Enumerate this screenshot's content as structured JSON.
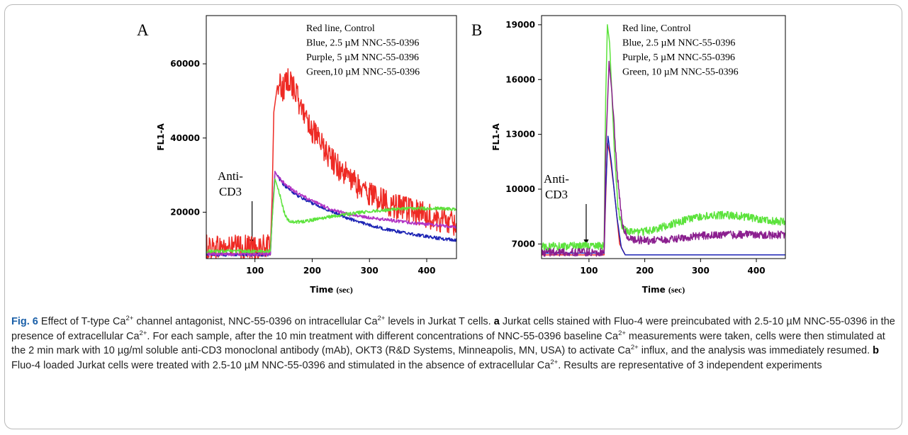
{
  "chart_data": [
    {
      "panel": "A",
      "type": "line",
      "xlabel": "Time",
      "xunit": "(sec)",
      "ylabel": "FL1-A",
      "xlim": [
        15,
        452
      ],
      "ylim": [
        7500,
        73000
      ],
      "xticks": [
        100,
        200,
        300,
        400
      ],
      "yticks": [
        20000,
        40000,
        60000
      ],
      "legend_lines": [
        "Red line, Control",
        "Blue, 2.5 µM NNC-55-0396",
        "Purple, 5 µM NNC-55-0396",
        "Green,10 µM NNC-55-0396"
      ],
      "annotation": {
        "lines": [
          "Anti-",
          "CD3"
        ],
        "arrow_x": 95
      },
      "series": [
        {
          "color": "#ee2a24",
          "points": [
            [
              15,
              10500
            ],
            [
              95,
              10500
            ],
            [
              127,
              10500
            ],
            [
              130,
              24000
            ],
            [
              133,
              47000
            ],
            [
              140,
              55000
            ],
            [
              150,
              53000
            ],
            [
              160,
              56000
            ],
            [
              170,
              53000
            ],
            [
              180,
              48000
            ],
            [
              190,
              46000
            ],
            [
              200,
              42000
            ],
            [
              220,
              37000
            ],
            [
              240,
              33000
            ],
            [
              260,
              30000
            ],
            [
              280,
              27000
            ],
            [
              300,
              25000
            ],
            [
              320,
              23500
            ],
            [
              340,
              22000
            ],
            [
              360,
              21000
            ],
            [
              380,
              20000
            ],
            [
              400,
              19000
            ],
            [
              420,
              18000
            ],
            [
              440,
              17500
            ],
            [
              452,
              17000
            ]
          ],
          "noise": 3500
        },
        {
          "color": "#1c23b4",
          "points": [
            [
              15,
              8600
            ],
            [
              95,
              8600
            ],
            [
              127,
              8600
            ],
            [
              130,
              18000
            ],
            [
              135,
              31000
            ],
            [
              140,
              29500
            ],
            [
              150,
              27500
            ],
            [
              160,
              26000
            ],
            [
              180,
              24000
            ],
            [
              200,
              22500
            ],
            [
              230,
              20500
            ],
            [
              260,
              18500
            ],
            [
              300,
              16500
            ],
            [
              340,
              15000
            ],
            [
              380,
              14000
            ],
            [
              420,
              13000
            ],
            [
              452,
              12500
            ]
          ],
          "noise": 450
        },
        {
          "color": "#b234c4",
          "points": [
            [
              15,
              8700
            ],
            [
              95,
              8700
            ],
            [
              127,
              8700
            ],
            [
              130,
              19000
            ],
            [
              135,
              31000
            ],
            [
              140,
              29500
            ],
            [
              150,
              28000
            ],
            [
              170,
              25500
            ],
            [
              200,
              23000
            ],
            [
              230,
              21000
            ],
            [
              260,
              19500
            ],
            [
              300,
              18500
            ],
            [
              340,
              17800
            ],
            [
              380,
              17000
            ],
            [
              420,
              16500
            ],
            [
              452,
              16000
            ]
          ],
          "noise": 450
        },
        {
          "color": "#5ce33c",
          "points": [
            [
              15,
              9500
            ],
            [
              95,
              9500
            ],
            [
              127,
              9500
            ],
            [
              130,
              18000
            ],
            [
              135,
              29000
            ],
            [
              140,
              26500
            ],
            [
              145,
              24000
            ],
            [
              150,
              20500
            ],
            [
              155,
              18500
            ],
            [
              160,
              17700
            ],
            [
              170,
              17300
            ],
            [
              190,
              17600
            ],
            [
              220,
              18500
            ],
            [
              260,
              19500
            ],
            [
              300,
              20200
            ],
            [
              340,
              20800
            ],
            [
              380,
              21000
            ],
            [
              420,
              21000
            ],
            [
              452,
              20800
            ]
          ],
          "noise": 450
        }
      ]
    },
    {
      "panel": "B",
      "type": "line",
      "xlabel": "Time",
      "xunit": "(sec)",
      "ylabel": "FL1-A",
      "xlim": [
        15,
        452
      ],
      "ylim": [
        6200,
        19500
      ],
      "xticks": [
        100,
        200,
        300,
        400
      ],
      "yticks": [
        7000,
        10000,
        13000,
        16000,
        19000
      ],
      "legend_lines": [
        "Red line, Control",
        "Blue, 2.5 µM NNC-55-0396",
        "Purple, 5 µM NNC-55-0396",
        "Green, 10 µM NNC-55-0396"
      ],
      "annotation": {
        "lines": [
          "Anti-",
          "CD3"
        ],
        "arrow_x": 95
      },
      "series": [
        {
          "color": "#ee2a24",
          "points": [
            [
              15,
              6400
            ],
            [
              95,
              6400
            ],
            [
              127,
              6400
            ],
            [
              130,
              9500
            ],
            [
              133,
              12500
            ],
            [
              137,
              12000
            ],
            [
              145,
              10000
            ],
            [
              155,
              7000
            ],
            [
              165,
              6400
            ],
            [
              452,
              6400
            ]
          ],
          "noise": 0
        },
        {
          "color": "#1c23b4",
          "points": [
            [
              15,
              6500
            ],
            [
              95,
              6500
            ],
            [
              127,
              6500
            ],
            [
              130,
              10000
            ],
            [
              134,
              12900
            ],
            [
              140,
              11500
            ],
            [
              150,
              8500
            ],
            [
              158,
              6800
            ],
            [
              165,
              6400
            ],
            [
              452,
              6400
            ]
          ],
          "noise": 0
        },
        {
          "color": "#5ce33c",
          "points": [
            [
              15,
              6850
            ],
            [
              95,
              6900
            ],
            [
              127,
              6900
            ],
            [
              130,
              15000
            ],
            [
              133,
              19000
            ],
            [
              137,
              18000
            ],
            [
              145,
              12500
            ],
            [
              152,
              9000
            ],
            [
              160,
              7800
            ],
            [
              180,
              7600
            ],
            [
              220,
              7800
            ],
            [
              260,
              8200
            ],
            [
              300,
              8500
            ],
            [
              340,
              8600
            ],
            [
              380,
              8500
            ],
            [
              420,
              8300
            ],
            [
              452,
              8200
            ]
          ],
          "noise": 220
        },
        {
          "color": "#8b1f8f",
          "points": [
            [
              15,
              6550
            ],
            [
              95,
              6550
            ],
            [
              127,
              6550
            ],
            [
              130,
              12000
            ],
            [
              136,
              17000
            ],
            [
              142,
              15000
            ],
            [
              150,
              11000
            ],
            [
              160,
              8000
            ],
            [
              170,
              7300
            ],
            [
              200,
              7200
            ],
            [
              240,
              7200
            ],
            [
              280,
              7400
            ],
            [
              320,
              7500
            ],
            [
              360,
              7500
            ],
            [
              400,
              7500
            ],
            [
              452,
              7500
            ]
          ],
          "noise": 220
        }
      ]
    }
  ],
  "caption": {
    "fig_label": "Fig. 6",
    "ca": "Ca",
    "sup": "2+",
    "t1": " Effect of T-type ",
    "t2": " channel antagonist, NNC-55-0396 on intracellular ",
    "t3": " levels in Jurkat T cells. ",
    "a_label": "a",
    "t4": " Jurkat cells stained with Fluo-4 were preincubated with 2.5-10 µM NNC-55-0396 in the presence of extracellular ",
    "t5": ". For each sample, after the 10 min treatment with different concentrations of NNC-55-0396 baseline ",
    "t6": " measurements were taken, cells were then stimulated at the 2 min mark with 10 µg/ml soluble anti-CD3 monoclonal antibody (mAb), OKT3 (R&D Systems, Minneapolis, MN, USA) to activate ",
    "t7": " influx, and the analysis was immediately resumed. ",
    "b_label": "b",
    "t8": " Fluo-4 loaded Jurkat cells were treated with 2.5-10 µM NNC-55-0396 and stimulated in the absence of extracellular ",
    "t9": ". Results are representative of 3 independent experiments"
  }
}
